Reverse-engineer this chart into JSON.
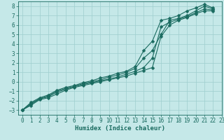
{
  "xlabel": "Humidex (Indice chaleur)",
  "xlim": [
    -0.5,
    23
  ],
  "ylim": [
    -3.5,
    8.5
  ],
  "xticks": [
    0,
    1,
    2,
    3,
    4,
    5,
    6,
    7,
    8,
    9,
    10,
    11,
    12,
    13,
    14,
    15,
    16,
    17,
    18,
    19,
    20,
    21,
    22,
    23
  ],
  "yticks": [
    -3,
    -2,
    -1,
    0,
    1,
    2,
    3,
    4,
    5,
    6,
    7,
    8
  ],
  "bg_color": "#c5e8e8",
  "line_color": "#1a6b60",
  "grid_color": "#9dcece",
  "lines": [
    {
      "x": [
        0,
        1,
        2,
        3,
        4,
        5,
        6,
        7,
        8,
        9,
        10,
        11,
        12,
        13,
        14,
        15,
        16,
        17,
        18,
        19,
        20,
        21,
        22
      ],
      "y": [
        -3.0,
        -2.5,
        -1.9,
        -1.7,
        -1.3,
        -0.9,
        -0.6,
        -0.4,
        -0.2,
        0.0,
        0.2,
        0.4,
        0.6,
        0.9,
        1.2,
        1.5,
        4.8,
        6.0,
        6.5,
        6.8,
        7.2,
        7.5,
        7.5
      ]
    },
    {
      "x": [
        0,
        1,
        2,
        3,
        4,
        5,
        6,
        7,
        8,
        9,
        10,
        11,
        12,
        13,
        14,
        15,
        16,
        17,
        18,
        19,
        20,
        21,
        22
      ],
      "y": [
        -3.0,
        -2.4,
        -1.8,
        -1.6,
        -1.1,
        -0.8,
        -0.5,
        -0.3,
        -0.1,
        0.1,
        0.3,
        0.5,
        0.8,
        1.1,
        1.5,
        2.5,
        5.8,
        6.3,
        6.6,
        6.9,
        7.3,
        7.7,
        7.6
      ]
    },
    {
      "x": [
        0,
        1,
        2,
        3,
        4,
        5,
        6,
        7,
        8,
        9,
        10,
        11,
        12,
        13,
        14,
        15,
        16,
        17,
        18,
        19,
        20,
        21,
        22
      ],
      "y": [
        -3.0,
        -2.3,
        -1.8,
        -1.5,
        -1.0,
        -0.7,
        -0.5,
        -0.2,
        0.0,
        0.2,
        0.5,
        0.7,
        1.0,
        1.4,
        2.5,
        3.3,
        5.0,
        6.5,
        6.7,
        7.0,
        7.5,
        8.0,
        7.7
      ]
    },
    {
      "x": [
        0,
        1,
        2,
        3,
        4,
        5,
        6,
        7,
        8,
        9,
        10,
        11,
        12,
        13,
        14,
        15,
        16,
        17,
        18,
        19,
        20,
        21,
        22
      ],
      "y": [
        -3.0,
        -2.2,
        -1.7,
        -1.4,
        -0.9,
        -0.6,
        -0.4,
        -0.1,
        0.1,
        0.4,
        0.6,
        0.9,
        1.1,
        1.6,
        3.3,
        4.3,
        6.5,
        6.7,
        7.0,
        7.5,
        7.8,
        8.2,
        7.8
      ]
    }
  ],
  "marker": "D",
  "markersize": 2.5,
  "linewidth": 0.8,
  "tick_fontsize": 5.5,
  "label_fontsize": 6.5
}
